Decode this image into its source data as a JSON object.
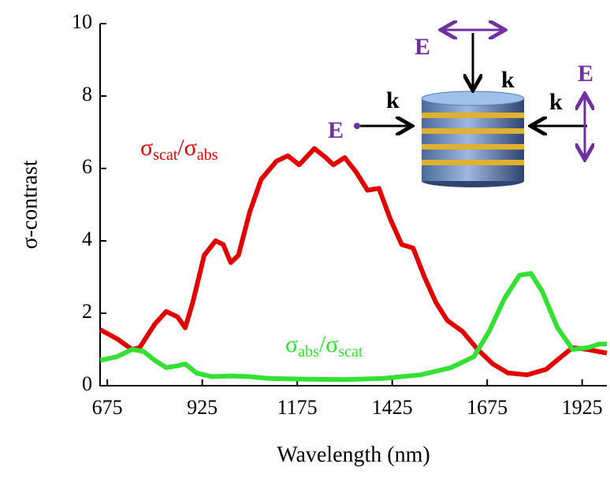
{
  "chart_data": {
    "type": "line",
    "x_label": "Wavelength (nm)",
    "y_label": "σ-contrast",
    "xlim": [
      656,
      1990
    ],
    "ylim": [
      0,
      10
    ],
    "xticks": [
      675,
      925,
      1175,
      1425,
      1675,
      1925
    ],
    "yticks": [
      0,
      2,
      4,
      6,
      8,
      10
    ],
    "grid": false,
    "series": [
      {
        "color": "#e00000",
        "x": [
          656,
          700,
          740,
          760,
          800,
          830,
          860,
          880,
          900,
          930,
          960,
          980,
          1000,
          1020,
          1050,
          1080,
          1120,
          1150,
          1180,
          1220,
          1250,
          1270,
          1300,
          1330,
          1360,
          1390,
          1420,
          1450,
          1480,
          1510,
          1540,
          1570,
          1610,
          1650,
          1690,
          1730,
          1780,
          1830,
          1870,
          1900,
          1940,
          1990
        ],
        "values": [
          1.55,
          1.3,
          1.0,
          1.05,
          1.7,
          2.05,
          1.9,
          1.6,
          2.3,
          3.6,
          4.0,
          3.9,
          3.4,
          3.6,
          4.8,
          5.7,
          6.2,
          6.35,
          6.1,
          6.55,
          6.3,
          6.1,
          6.3,
          5.9,
          5.4,
          5.45,
          4.6,
          3.9,
          3.8,
          3.0,
          2.3,
          1.8,
          1.5,
          1.0,
          0.6,
          0.35,
          0.3,
          0.45,
          0.8,
          1.05,
          1.0,
          0.9
        ]
      },
      {
        "color": "#33e033",
        "x": [
          656,
          700,
          740,
          770,
          800,
          830,
          860,
          880,
          910,
          950,
          1000,
          1050,
          1100,
          1200,
          1300,
          1400,
          1500,
          1580,
          1640,
          1680,
          1720,
          1760,
          1790,
          1820,
          1860,
          1900,
          1940,
          1970,
          1990
        ],
        "values": [
          0.7,
          0.8,
          1.0,
          0.95,
          0.7,
          0.5,
          0.55,
          0.6,
          0.35,
          0.25,
          0.27,
          0.25,
          0.2,
          0.18,
          0.17,
          0.2,
          0.3,
          0.5,
          0.8,
          1.5,
          2.4,
          3.05,
          3.1,
          2.6,
          1.6,
          1.0,
          1.05,
          1.15,
          1.15
        ]
      }
    ],
    "annotations": [
      {
        "parts": [
          "σ",
          "scat",
          "/σ",
          "abs"
        ],
        "color": "#e00000"
      },
      {
        "parts": [
          "σ",
          "abs",
          "/σ",
          "scat"
        ],
        "color": "#33e033"
      }
    ],
    "inset_labels": [
      "E",
      "k",
      "E",
      "k",
      "E",
      "k"
    ]
  }
}
